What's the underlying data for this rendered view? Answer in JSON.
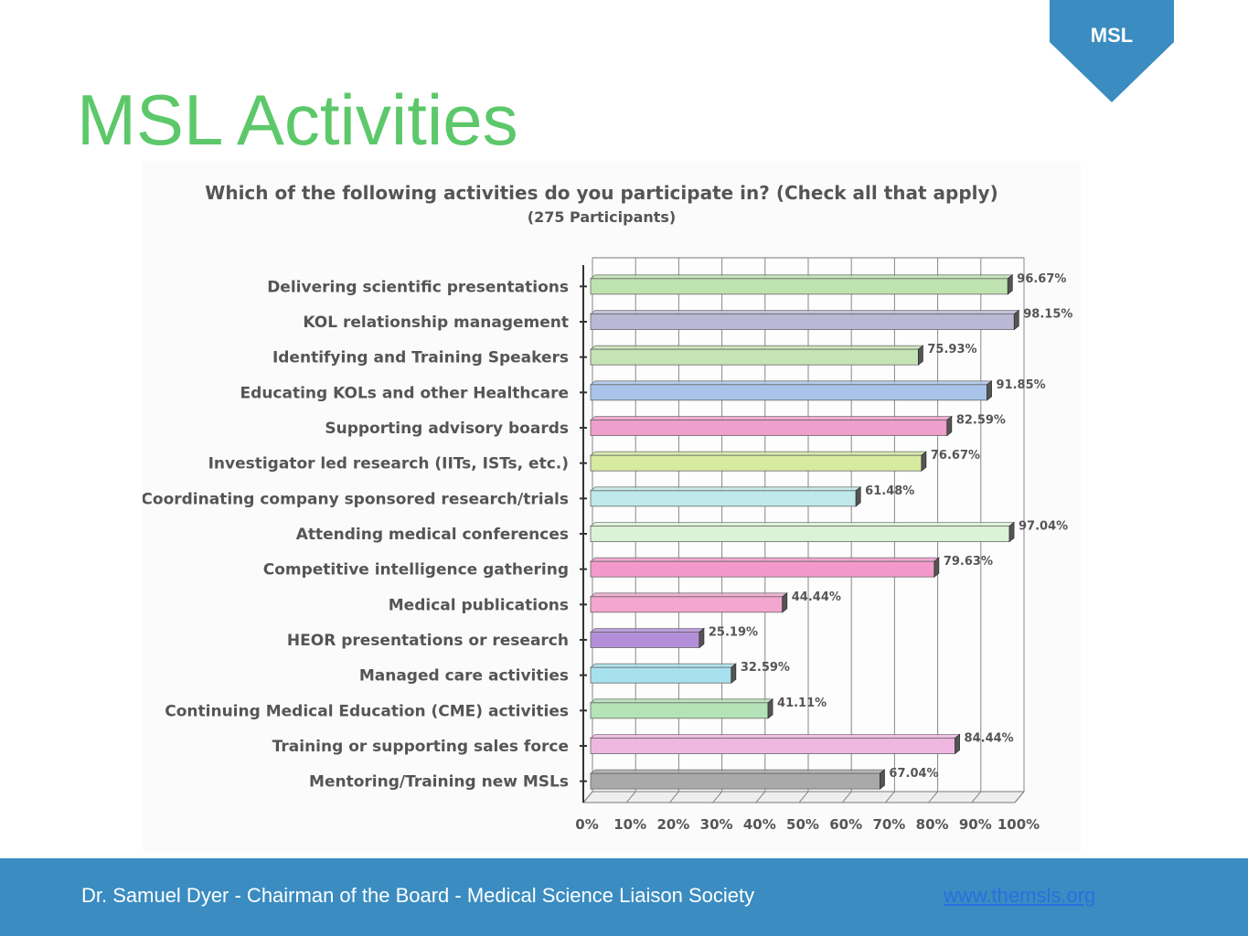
{
  "badge": {
    "label": "MSL",
    "color": "#3a8cc1"
  },
  "slide": {
    "title": "MSL Activities",
    "title_color": "#5cc86a"
  },
  "chart_data": {
    "type": "bar",
    "orientation": "horizontal",
    "title": "Which of the following activities do you participate in? (Check all that apply)",
    "subtitle": "(275 Participants)",
    "categories": [
      "Delivering scientific presentations",
      "KOL relationship management",
      "Identifying and Training Speakers",
      "Educating KOLs and other Healthcare",
      "Supporting advisory boards",
      "Investigator led research (IITs, ISTs, etc.)",
      "Coordinating company sponsored research/trials",
      "Attending medical conferences",
      "Competitive intelligence gathering",
      "Medical publications",
      "HEOR presentations or research",
      "Managed care activities",
      "Continuing Medical Education (CME) activities",
      "Training or supporting sales force",
      "Mentoring/Training new MSLs"
    ],
    "values": [
      96.67,
      98.15,
      75.93,
      91.85,
      82.59,
      76.67,
      61.48,
      97.04,
      79.63,
      44.44,
      25.19,
      32.59,
      41.11,
      84.44,
      67.04
    ],
    "value_labels": [
      "96.67%",
      "98.15%",
      "75.93%",
      "91.85%",
      "82.59%",
      "76.67%",
      "61.48%",
      "97.04%",
      "79.63%",
      "44.44%",
      "25.19%",
      "32.59%",
      "41.11%",
      "84.44%",
      "67.04%"
    ],
    "bar_colors": [
      "#bfe3b0",
      "#b9b9d6",
      "#c5e3b5",
      "#a9c4ea",
      "#ef9fcb",
      "#d6eaa0",
      "#bfe9ea",
      "#dcf2d6",
      "#f39acb",
      "#f3a6cf",
      "#b48fd9",
      "#a7e1f0",
      "#b3e3b6",
      "#f0b6e2",
      "#a9a9a9"
    ],
    "xlim": [
      0,
      100
    ],
    "x_ticks": [
      "0%",
      "10%",
      "20%",
      "30%",
      "40%",
      "50%",
      "60%",
      "70%",
      "80%",
      "90%",
      "100%"
    ],
    "grid": true
  },
  "footer": {
    "text": "Dr. Samuel Dyer - Chairman of the Board - Medical Science Liaison Society",
    "link": "www.themsls.org",
    "background": "#3a8cc1",
    "link_color": "#2a6fe0"
  }
}
